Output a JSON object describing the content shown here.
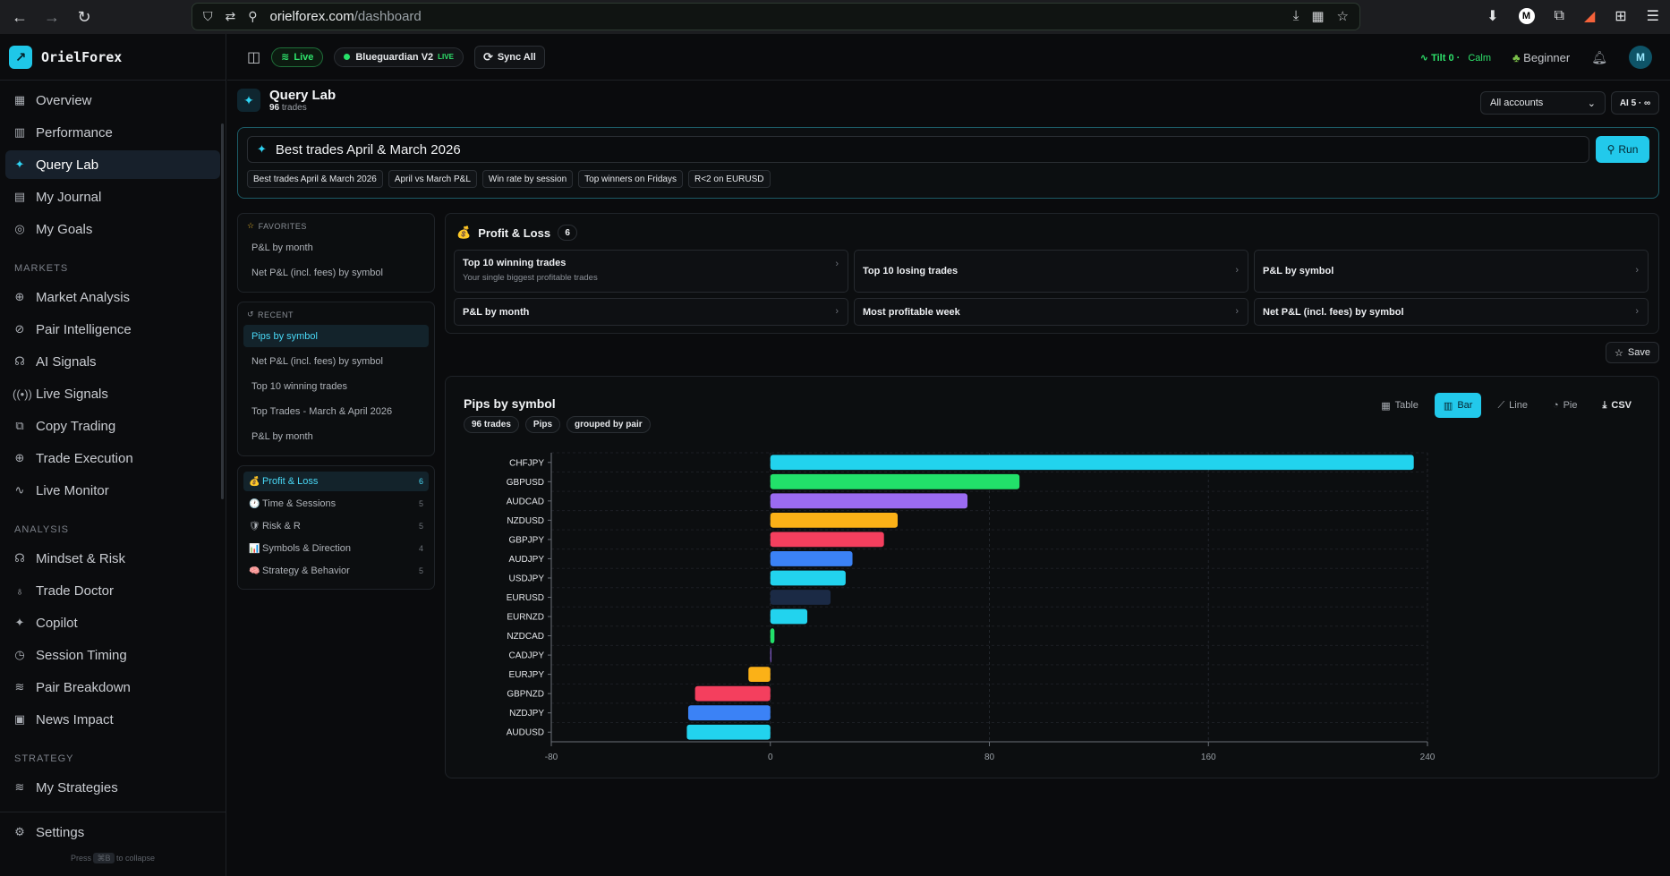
{
  "browser": {
    "url_host": "orielforex.com",
    "url_path": "/dashboard"
  },
  "sidebar": {
    "brand": "OrielForex",
    "main_items": [
      {
        "label": "Overview",
        "icon": "grid-icon"
      },
      {
        "label": "Performance",
        "icon": "bar-chart-icon"
      },
      {
        "label": "Query Lab",
        "icon": "sparkle-icon",
        "active": true
      },
      {
        "label": "My Journal",
        "icon": "book-icon"
      },
      {
        "label": "My Goals",
        "icon": "target-icon"
      }
    ],
    "markets_label": "MARKETS",
    "markets_items": [
      {
        "label": "Market Analysis",
        "icon": "globe-icon"
      },
      {
        "label": "Pair Intelligence",
        "icon": "compass-icon"
      },
      {
        "label": "AI Signals",
        "icon": "brain-icon"
      },
      {
        "label": "Live Signals",
        "icon": "radio-icon"
      },
      {
        "label": "Copy Trading",
        "icon": "copy-icon"
      },
      {
        "label": "Trade Execution",
        "icon": "crosshair-icon"
      },
      {
        "label": "Live Monitor",
        "icon": "pulse-icon"
      }
    ],
    "analysis_label": "ANALYSIS",
    "analysis_items": [
      {
        "label": "Mindset & Risk",
        "icon": "brain-icon"
      },
      {
        "label": "Trade Doctor",
        "icon": "stethoscope-icon"
      },
      {
        "label": "Copilot",
        "icon": "sparkle-icon"
      },
      {
        "label": "Session Timing",
        "icon": "clock-icon"
      },
      {
        "label": "Pair Breakdown",
        "icon": "layers-icon"
      },
      {
        "label": "News Impact",
        "icon": "calendar-icon"
      }
    ],
    "strategy_label": "STRATEGY",
    "strategy_items": [
      {
        "label": "My Strategies",
        "icon": "layers-icon"
      }
    ],
    "settings_label": "Settings",
    "collapse_hint_pre": "Press",
    "collapse_hint_key": "⌘B",
    "collapse_hint_post": "to collapse"
  },
  "topbar": {
    "live_label": "Live",
    "account_label": "Blueguardian V2",
    "account_tag": "LIVE",
    "sync_label": "Sync All",
    "tilt_label": "Tilt",
    "tilt_value": "0",
    "tilt_state": "Calm",
    "level_label": "Beginner",
    "user_initial": "M"
  },
  "page": {
    "title": "Query Lab",
    "trade_count": "96",
    "trade_suffix": "trades",
    "accounts_select": "All accounts",
    "ai_button": "AI 5 · ∞"
  },
  "query": {
    "value": "Best trades April & March 2026",
    "run_label": "Run",
    "chips": [
      "Best trades April & March 2026",
      "April vs March P&L",
      "Win rate by session",
      "Top winners on Fridays",
      "R<2 on EURUSD"
    ]
  },
  "favorites": {
    "label": "FAVORITES",
    "items": [
      "P&L by month",
      "Net P&L (incl. fees) by symbol"
    ]
  },
  "recent": {
    "label": "RECENT",
    "items": [
      "Pips by symbol",
      "Net P&L (incl. fees) by symbol",
      "Top 10 winning trades",
      "Top Trades - March & April 2026",
      "P&L by month"
    ]
  },
  "categories": [
    {
      "emoji": "💰",
      "label": "Profit & Loss",
      "count": "6",
      "active": true
    },
    {
      "emoji": "🕐",
      "label": "Time & Sessions",
      "count": "5"
    },
    {
      "emoji": "🛡",
      "label": "Risk & R",
      "count": "5"
    },
    {
      "emoji": "📊",
      "label": "Symbols & Direction",
      "count": "4"
    },
    {
      "emoji": "🧠",
      "label": "Strategy & Behavior",
      "count": "5"
    }
  ],
  "pl_panel": {
    "emoji": "💰",
    "title": "Profit & Loss",
    "count": "6",
    "cards": [
      {
        "title": "Top 10 winning trades",
        "subtitle": "Your single biggest profitable trades"
      },
      {
        "title": "Top 10 losing trades",
        "subtitle": ""
      },
      {
        "title": "P&L by symbol",
        "subtitle": ""
      },
      {
        "title": "P&L by month",
        "subtitle": ""
      },
      {
        "title": "Most profitable week",
        "subtitle": ""
      },
      {
        "title": "Net P&L (incl. fees) by symbol",
        "subtitle": ""
      }
    ]
  },
  "save_label": "Save",
  "chart_panel": {
    "title": "Pips by symbol",
    "chips": [
      "96 trades",
      "Pips",
      "grouped by pair"
    ],
    "view_tabs": [
      {
        "label": "Table",
        "icon": "table-icon"
      },
      {
        "label": "Bar",
        "icon": "bar-chart-icon",
        "active": true
      },
      {
        "label": "Line",
        "icon": "line-chart-icon"
      },
      {
        "label": "Pie",
        "icon": "pie-chart-icon"
      },
      {
        "label": "CSV",
        "icon": "download-icon"
      }
    ]
  },
  "chart_data": {
    "type": "bar",
    "orientation": "horizontal",
    "title": "Pips by symbol",
    "categories": [
      "CHFJPY",
      "GBPUSD",
      "AUDCAD",
      "NZDUSD",
      "GBPJPY",
      "AUDJPY",
      "USDJPY",
      "EURUSD",
      "EURNZD",
      "NZDCAD",
      "CADJPY",
      "EURJPY",
      "GBPNZD",
      "NZDJPY",
      "AUDUSD"
    ],
    "values": [
      235,
      91,
      72,
      46.5,
      41.5,
      30,
      27.5,
      22,
      13.5,
      1.5,
      0.2,
      -8,
      -27.5,
      -30,
      -30.5
    ],
    "colors": [
      "#22d3ee",
      "#22e06a",
      "#9b6bf2",
      "#fbb117",
      "#f43f5e",
      "#3b82f6",
      "#22d3ee",
      "#1b2a45",
      "#22d3ee",
      "#22e06a",
      "#9b6bf2",
      "#fbb117",
      "#f43f5e",
      "#3b82f6",
      "#22d3ee"
    ],
    "xlim": [
      -80,
      240
    ],
    "xticks": [
      -80,
      0,
      80,
      160,
      240
    ],
    "grid": true
  }
}
